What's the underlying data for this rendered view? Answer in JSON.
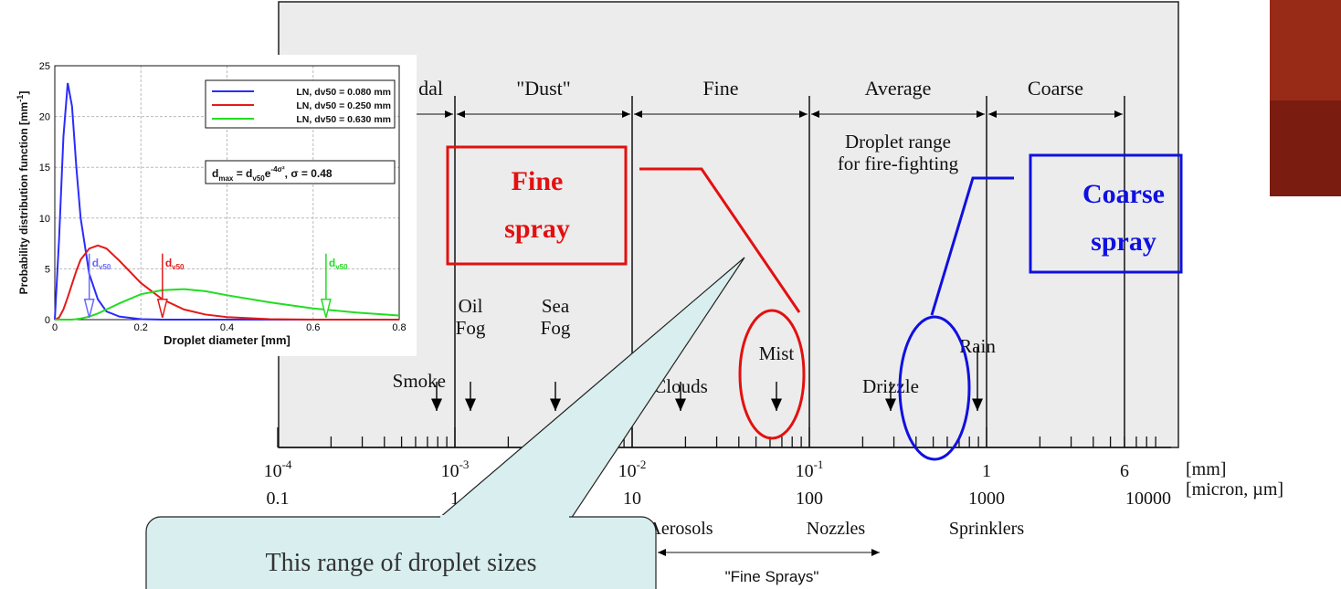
{
  "chart_data": {
    "type": "line",
    "x_label": [
      "Droplet diameter [mm]"
    ],
    "y_label": [
      "Probability distribution function [mm",
      "-1",
      "]"
    ],
    "x": [
      0,
      0.01,
      0.02,
      0.03,
      0.04,
      0.05,
      0.06,
      0.08,
      0.1,
      0.12,
      0.15,
      0.2,
      0.25,
      0.3,
      0.35,
      0.4,
      0.5,
      0.6,
      0.7,
      0.8
    ],
    "series": [
      {
        "name": "LN, dv50 = 0.080 mm",
        "color": "#2b2bff",
        "values": [
          0,
          8,
          18,
          23.3,
          21,
          15,
          10,
          4.5,
          2,
          0.8,
          0.3,
          0.05,
          0,
          0,
          0,
          0,
          0,
          0,
          0,
          0
        ]
      },
      {
        "name": "LN, dv50 = 0.250 mm",
        "color": "#e31a1a",
        "values": [
          0,
          0.2,
          1,
          2.2,
          3.5,
          4.8,
          5.9,
          7,
          7.3,
          7,
          5.8,
          3.6,
          2,
          1,
          0.5,
          0.25,
          0.05,
          0,
          0,
          0
        ]
      },
      {
        "name": "LN, dv50 = 0.630 mm",
        "color": "#22dd22",
        "values": [
          0,
          0,
          0,
          0,
          0,
          0.05,
          0.1,
          0.3,
          0.6,
          1,
          1.6,
          2.5,
          2.9,
          3,
          2.8,
          2.4,
          1.7,
          1.1,
          0.7,
          0.4
        ]
      }
    ],
    "formula": [
      "d",
      "max",
      " = d",
      "v50",
      "e",
      "-4σ²",
      ", σ = 0.48"
    ],
    "markers": [
      {
        "x": 0.08,
        "text": "d",
        "sub": "v50",
        "color": "#6a6aff"
      },
      {
        "x": 0.25,
        "text": "d",
        "sub": "v50",
        "color": "#e31a1a"
      },
      {
        "x": 0.63,
        "text": "d",
        "sub": "v50",
        "color": "#22dd22"
      }
    ],
    "xlim": [
      0,
      0.8
    ],
    "xticks": [
      0,
      0.2,
      0.4,
      0.6,
      0.8
    ],
    "ylim": [
      0,
      25
    ],
    "yticks": [
      0,
      5,
      10,
      15,
      20,
      25
    ],
    "grid": true
  },
  "diagram": {
    "categories": [
      "dal",
      "\"Dust\"",
      "Fine",
      "Average",
      "Coarse"
    ],
    "note": [
      "Droplet range",
      "for fire-fighting"
    ],
    "phenomena": [
      [
        "Smoke"
      ],
      [
        "Oil",
        "Fog"
      ],
      [
        "Sea",
        "Fog"
      ],
      [
        "Clouds"
      ],
      [
        "Mist"
      ],
      [
        "Drizzle"
      ],
      [
        "Rain"
      ]
    ],
    "mm_ticks": [
      {
        "base": "10",
        "exp": "-4"
      },
      {
        "base": "10",
        "exp": "-3"
      },
      {
        "base": "10",
        "exp": "-2"
      },
      {
        "base": "10",
        "exp": "-1"
      },
      {
        "base": "1"
      },
      {
        "base": "6"
      }
    ],
    "micron_ticks": [
      "0.1",
      "1",
      "10",
      "100",
      "1000",
      "10000"
    ],
    "units": [
      "[mm]",
      "[micron, µm]"
    ],
    "devices": [
      "Aerosols",
      "Nozzles",
      "Sprinklers"
    ],
    "fine_sprays": "\"Fine Sprays\""
  },
  "annotations": {
    "fine_spray": [
      "Fine",
      "spray"
    ],
    "coarse_spray": [
      "Coarse",
      "spray"
    ],
    "callout": "This range of droplet sizes"
  }
}
